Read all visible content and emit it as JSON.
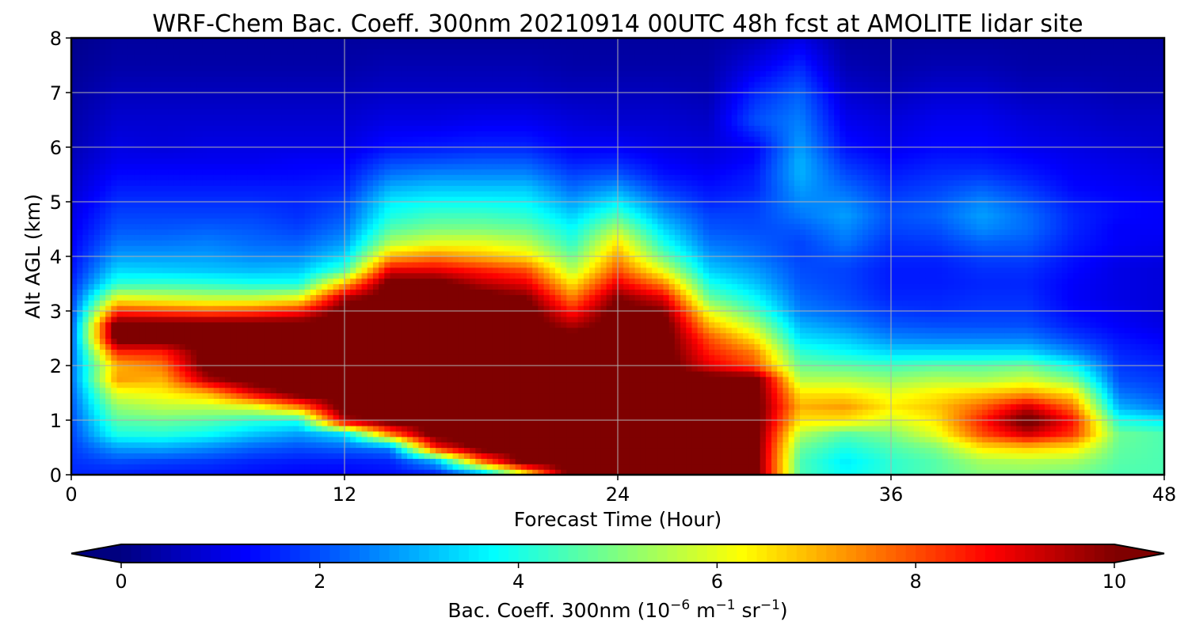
{
  "chart_data": {
    "type": "heatmap",
    "title": "WRF-Chem Bac. Coeff. 300nm  20210914 00UTC 48h fcst at AMOLITE lidar site",
    "xlabel": "Forecast Time (Hour)",
    "ylabel": "Alt AGL (km)",
    "xlim": [
      0,
      48
    ],
    "ylim": [
      0,
      8
    ],
    "xticks": [
      "0",
      "12",
      "24",
      "36",
      "48"
    ],
    "yticks": [
      "0",
      "1",
      "2",
      "3",
      "4",
      "5",
      "6",
      "7",
      "8"
    ],
    "grid": true,
    "colormap": "jet",
    "colorbar": {
      "label_main": "Bac. Coeff. 300nm  (10",
      "label_exp1": "−6",
      "label_mid": " m",
      "label_exp2": "−1",
      "label_mid2": " sr",
      "label_exp3": "−1",
      "label_end": ")",
      "ticks": [
        "0",
        "2",
        "4",
        "6",
        "8",
        "10"
      ],
      "range": [
        0,
        10
      ],
      "extend": "both",
      "under_color": "#00007f",
      "over_color": "#7f0000"
    },
    "x_hours": [
      0,
      2,
      4,
      6,
      8,
      10,
      12,
      14,
      16,
      18,
      20,
      22,
      24,
      26,
      28,
      30,
      32,
      34,
      36,
      38,
      40,
      42,
      44,
      46,
      48
    ],
    "altitudes_km": [
      0,
      0.25,
      0.5,
      0.75,
      1.0,
      1.25,
      1.5,
      1.75,
      2.0,
      2.25,
      2.5,
      2.75,
      3.0,
      3.25,
      3.5,
      3.75,
      4.0,
      4.25,
      4.5,
      4.75,
      5.0,
      5.25,
      5.5,
      5.75,
      6.0,
      6.5,
      7.0,
      7.5,
      8.0
    ],
    "values_by_hour": [
      [
        1.6,
        1.7,
        1.8,
        1.9,
        2.0,
        2.1,
        2.2,
        2.3,
        2.3,
        2.2,
        2.1,
        2.0,
        1.9,
        1.8,
        1.6,
        1.4,
        1.3,
        1.2,
        1.1,
        1.0,
        0.9,
        0.8,
        0.7,
        0.6,
        0.5,
        0.4,
        0.3,
        0.2,
        0.1
      ],
      [
        1.5,
        2.0,
        2.8,
        4.0,
        4.6,
        5.2,
        6.0,
        7.2,
        7.0,
        8.4,
        10.5,
        10.5,
        8.2,
        6.0,
        4.2,
        3.4,
        2.8,
        2.4,
        2.1,
        1.9,
        1.7,
        1.5,
        1.3,
        1.1,
        1.0,
        0.8,
        0.6,
        0.4,
        0.3
      ],
      [
        1.4,
        1.9,
        2.9,
        4.1,
        4.8,
        5.6,
        6.3,
        7.0,
        7.6,
        8.5,
        10.5,
        10.5,
        8.0,
        5.8,
        4.3,
        3.3,
        2.8,
        2.4,
        2.1,
        1.9,
        1.7,
        1.5,
        1.3,
        1.1,
        0.9,
        0.8,
        0.6,
        0.4,
        0.3
      ],
      [
        1.4,
        1.8,
        2.6,
        3.8,
        4.6,
        5.6,
        7.0,
        9.5,
        10.5,
        10.5,
        10.5,
        10.5,
        7.8,
        5.6,
        4.2,
        3.2,
        2.8,
        2.5,
        2.2,
        1.9,
        1.7,
        1.5,
        1.3,
        1.1,
        1.0,
        0.8,
        0.6,
        0.4,
        0.3
      ],
      [
        1.3,
        1.6,
        2.2,
        3.2,
        4.2,
        6.0,
        9.0,
        10.5,
        10.5,
        10.5,
        10.5,
        10.5,
        8.0,
        5.6,
        4.0,
        3.1,
        2.6,
        2.3,
        2.1,
        1.9,
        1.7,
        1.5,
        1.3,
        1.1,
        1.0,
        0.8,
        0.6,
        0.4,
        0.3
      ],
      [
        1.2,
        1.5,
        2.0,
        2.8,
        4.0,
        7.5,
        10.5,
        10.5,
        10.5,
        10.5,
        10.5,
        10.5,
        8.5,
        6.0,
        4.0,
        3.2,
        2.6,
        2.2,
        1.9,
        1.7,
        1.6,
        1.5,
        1.3,
        1.2,
        1.0,
        0.8,
        0.6,
        0.4,
        0.3
      ],
      [
        1.2,
        1.5,
        2.2,
        3.5,
        9.5,
        10.5,
        10.5,
        10.5,
        10.5,
        10.5,
        10.5,
        10.5,
        10.5,
        9.5,
        7.0,
        4.5,
        3.4,
        2.8,
        2.4,
        2.1,
        1.9,
        1.6,
        1.4,
        1.2,
        1.0,
        0.8,
        0.6,
        0.4,
        0.3
      ],
      [
        1.3,
        1.6,
        2.5,
        7.5,
        10.5,
        10.5,
        10.5,
        10.5,
        10.5,
        10.5,
        10.5,
        10.5,
        10.5,
        10.5,
        10.5,
        9.0,
        7.0,
        5.5,
        4.6,
        4.0,
        3.6,
        3.0,
        2.4,
        1.9,
        1.4,
        1.0,
        0.7,
        0.5,
        0.3
      ],
      [
        1.4,
        3.0,
        8.5,
        10.5,
        10.5,
        10.5,
        10.5,
        10.5,
        10.5,
        10.5,
        10.5,
        10.5,
        10.5,
        10.5,
        10.5,
        9.0,
        7.5,
        6.0,
        5.0,
        4.4,
        3.8,
        3.2,
        2.6,
        2.0,
        1.5,
        1.0,
        0.7,
        0.5,
        0.3
      ],
      [
        2.5,
        7.5,
        10.5,
        10.5,
        10.5,
        10.5,
        10.5,
        10.5,
        10.5,
        10.5,
        10.5,
        10.5,
        10.5,
        10.5,
        9.5,
        8.5,
        7.0,
        6.0,
        5.0,
        4.4,
        3.8,
        3.2,
        2.6,
        2.1,
        1.6,
        1.1,
        0.7,
        0.5,
        0.3
      ],
      [
        6.0,
        10.5,
        10.5,
        10.5,
        10.5,
        10.5,
        10.5,
        10.5,
        10.5,
        10.5,
        10.5,
        10.5,
        10.5,
        10.0,
        9.0,
        8.0,
        6.5,
        5.6,
        4.8,
        4.2,
        3.7,
        3.2,
        2.6,
        2.1,
        1.6,
        1.1,
        0.7,
        0.5,
        0.3
      ],
      [
        10.5,
        10.5,
        10.5,
        10.5,
        10.5,
        10.5,
        10.5,
        10.5,
        10.5,
        10.5,
        10.5,
        9.5,
        8.5,
        7.5,
        6.5,
        5.5,
        4.8,
        4.2,
        3.8,
        3.3,
        2.8,
        2.3,
        1.9,
        1.5,
        1.2,
        0.9,
        0.6,
        0.4,
        0.3
      ],
      [
        10.5,
        10.5,
        10.5,
        10.5,
        10.5,
        10.5,
        10.5,
        10.5,
        10.5,
        10.5,
        10.5,
        10.5,
        10.5,
        10.0,
        9.0,
        8.0,
        7.2,
        6.5,
        5.5,
        4.5,
        3.6,
        2.8,
        2.1,
        1.6,
        1.2,
        0.8,
        0.6,
        0.4,
        0.3
      ],
      [
        10.5,
        10.5,
        10.5,
        10.5,
        10.5,
        10.5,
        10.5,
        10.5,
        10.5,
        10.5,
        10.5,
        10.5,
        10.0,
        9.0,
        7.5,
        6.0,
        4.8,
        4.0,
        3.4,
        2.8,
        2.3,
        1.8,
        1.4,
        1.2,
        1.0,
        0.8,
        0.6,
        0.4,
        0.3
      ],
      [
        10.5,
        10.5,
        10.5,
        10.5,
        10.5,
        10.5,
        10.5,
        10.5,
        9.0,
        8.5,
        8.0,
        7.0,
        6.0,
        4.8,
        4.0,
        3.3,
        2.8,
        2.4,
        2.1,
        1.9,
        1.6,
        1.4,
        1.2,
        1.0,
        0.9,
        0.7,
        0.5,
        0.4,
        0.3
      ],
      [
        10.5,
        10.5,
        10.5,
        10.5,
        10.5,
        10.5,
        10.5,
        10.5,
        8.0,
        7.5,
        6.5,
        5.5,
        4.5,
        3.8,
        3.2,
        2.8,
        2.4,
        2.2,
        2.0,
        1.9,
        1.8,
        1.6,
        1.5,
        1.3,
        1.2,
        2.0,
        1.6,
        1.0,
        0.5
      ],
      [
        4.5,
        4.5,
        4.8,
        5.5,
        6.5,
        7.0,
        6.5,
        5.5,
        4.8,
        4.2,
        3.5,
        3.0,
        2.5,
        2.3,
        2.1,
        2.0,
        1.9,
        1.9,
        2.1,
        2.4,
        2.6,
        2.8,
        3.0,
        3.0,
        2.8,
        2.5,
        2.2,
        1.6,
        1.0
      ],
      [
        3.8,
        3.6,
        4.0,
        4.6,
        6.5,
        7.2,
        6.5,
        5.5,
        4.6,
        3.8,
        3.2,
        2.6,
        2.2,
        2.0,
        1.9,
        1.9,
        2.1,
        2.4,
        2.6,
        2.8,
        2.6,
        2.3,
        2.0,
        1.7,
        1.4,
        1.1,
        0.8,
        0.5,
        0.3
      ],
      [
        4.2,
        4.2,
        4.5,
        5.0,
        5.8,
        6.4,
        6.0,
        5.2,
        4.4,
        3.4,
        2.6,
        2.1,
        1.8,
        1.6,
        1.5,
        1.5,
        1.6,
        1.7,
        1.9,
        2.0,
        1.9,
        1.7,
        1.5,
        1.3,
        1.1,
        0.9,
        0.6,
        0.4,
        0.3
      ],
      [
        4.6,
        4.6,
        5.0,
        6.0,
        6.5,
        6.8,
        6.4,
        5.5,
        4.6,
        3.4,
        2.5,
        2.0,
        1.7,
        1.6,
        1.5,
        1.5,
        1.6,
        1.8,
        2.0,
        2.2,
        2.1,
        1.9,
        1.7,
        1.5,
        1.3,
        1.1,
        0.8,
        0.5,
        0.3
      ],
      [
        5.0,
        5.4,
        6.5,
        8.0,
        8.5,
        7.8,
        6.8,
        5.4,
        4.6,
        3.4,
        2.5,
        2.0,
        1.8,
        1.7,
        1.6,
        1.7,
        1.9,
        2.2,
        2.6,
        2.8,
        2.6,
        2.2,
        1.8,
        1.5,
        1.3,
        1.1,
        0.8,
        0.5,
        0.3
      ],
      [
        5.0,
        5.5,
        6.8,
        9.2,
        10.5,
        9.2,
        7.2,
        5.8,
        4.8,
        3.4,
        2.5,
        2.0,
        1.8,
        1.7,
        1.6,
        1.7,
        1.9,
        2.1,
        2.3,
        2.3,
        2.1,
        1.8,
        1.5,
        1.3,
        1.1,
        0.9,
        0.6,
        0.4,
        0.3
      ],
      [
        4.8,
        5.4,
        6.5,
        8.2,
        8.6,
        7.6,
        6.5,
        5.0,
        3.8,
        2.6,
        1.9,
        1.5,
        1.3,
        1.2,
        1.2,
        1.3,
        1.4,
        1.5,
        1.6,
        1.6,
        1.5,
        1.3,
        1.2,
        1.1,
        1.0,
        0.8,
        0.6,
        0.4,
        0.3
      ],
      [
        4.5,
        4.6,
        4.7,
        4.8,
        4.0,
        3.0,
        2.4,
        2.0,
        1.8,
        1.6,
        1.4,
        1.2,
        1.1,
        1.0,
        1.0,
        1.0,
        1.1,
        1.2,
        1.2,
        1.3,
        1.3,
        1.2,
        1.1,
        1.0,
        0.9,
        0.7,
        0.5,
        0.4,
        0.3
      ],
      [
        4.5,
        4.5,
        4.5,
        4.5,
        3.6,
        2.4,
        2.0,
        1.8,
        1.6,
        1.4,
        1.2,
        1.0,
        0.9,
        0.9,
        0.9,
        0.9,
        1.0,
        1.1,
        1.2,
        1.2,
        1.2,
        1.1,
        1.0,
        0.9,
        0.8,
        0.7,
        0.5,
        0.4,
        0.3
      ]
    ]
  }
}
